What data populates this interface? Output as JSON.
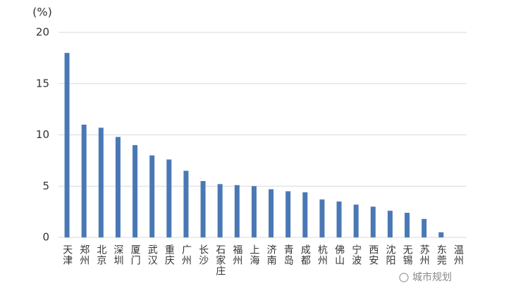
{
  "chart_data": {
    "type": "bar",
    "y_label": "(%)",
    "categories": [
      "天津",
      "郑州",
      "北京",
      "深圳",
      "厦门",
      "武汉",
      "重庆",
      "广州",
      "长沙",
      "石家庄",
      "福州",
      "上海",
      "济南",
      "青岛",
      "成都",
      "杭州",
      "佛山",
      "宁波",
      "西安",
      "沈阳",
      "无锡",
      "苏州",
      "东莞",
      "温州"
    ],
    "values": [
      18.0,
      11.0,
      10.7,
      9.8,
      9.0,
      8.0,
      7.6,
      6.5,
      5.5,
      5.2,
      5.1,
      5.0,
      4.7,
      4.5,
      4.4,
      3.7,
      3.5,
      3.2,
      3.0,
      2.6,
      2.4,
      1.8,
      0.5,
      0
    ],
    "color": "#4a78b5",
    "ylim": [
      0,
      20
    ],
    "yticks": [
      0,
      5,
      10,
      15,
      20
    ],
    "grid": true
  },
  "watermark": "城市规划"
}
